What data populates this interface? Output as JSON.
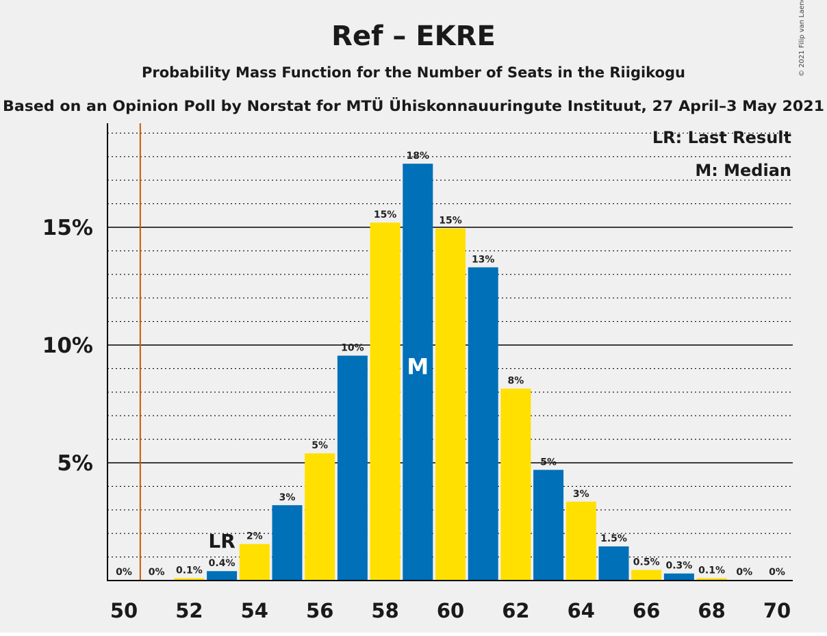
{
  "chart_data": {
    "type": "bar",
    "title": "Ref – EKRE",
    "subtitle": "Probability Mass Function for the Number of Seats in the Riigikogu",
    "subtitle2": "Based on an Opinion Poll by Norstat for MTÜ Ühiskonnauuringute Instituut, 27 April–3 May 2021",
    "copyright": "© 2021 Filip van Laenen",
    "legend": [
      "LR: Last Result",
      "M: Median"
    ],
    "x": [
      50,
      51,
      52,
      53,
      54,
      55,
      56,
      57,
      58,
      59,
      60,
      61,
      62,
      63,
      64,
      65,
      66,
      67,
      68,
      69,
      70
    ],
    "values": [
      0,
      0,
      0.1,
      0.4,
      1.55,
      3.2,
      5.4,
      9.55,
      15.2,
      17.7,
      14.95,
      13.3,
      8.15,
      4.7,
      3.35,
      1.45,
      0.45,
      0.3,
      0.1,
      0,
      0
    ],
    "value_labels": [
      "0%",
      "0%",
      "0.1%",
      "0.4%",
      "2%",
      "3%",
      "5%",
      "10%",
      "15%",
      "18%",
      "15%",
      "13%",
      "8%",
      "5%",
      "3%",
      "1.5%",
      "0.5%",
      "0.3%",
      "0.1%",
      "0%",
      "0%"
    ],
    "x_tick_labels": [
      "50",
      "52",
      "54",
      "56",
      "58",
      "60",
      "62",
      "64",
      "66",
      "68",
      "70"
    ],
    "x_ticks": [
      50,
      52,
      54,
      56,
      58,
      60,
      62,
      64,
      66,
      68,
      70
    ],
    "y_tick_labels": [
      "5%",
      "10%",
      "15%"
    ],
    "y_ticks": [
      5,
      10,
      15
    ],
    "ylim": [
      0,
      19.3
    ],
    "last_result_seat": 53,
    "last_result_label": "LR",
    "median_seat": 59,
    "median_label": "M",
    "threshold_line_x": 50.5,
    "colors": {
      "blue": "#0070b8",
      "yellow": "#ffe000",
      "threshold": "#c85a00",
      "background": "#f0f0f0"
    }
  }
}
